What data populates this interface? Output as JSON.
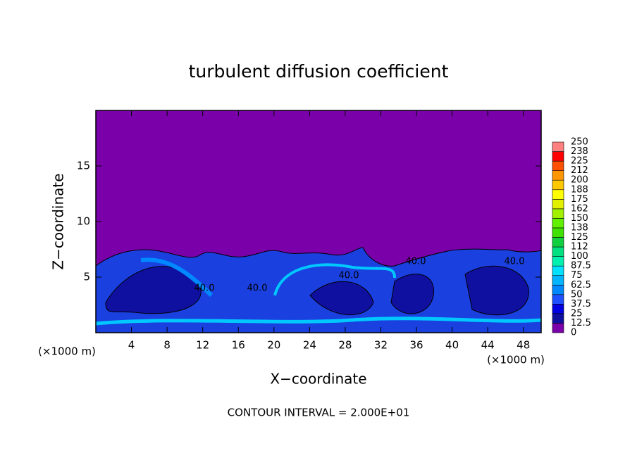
{
  "chart_data": {
    "type": "contour",
    "title": "turbulent diffusion coefficient",
    "x_label": "X−coordinate",
    "y_label": "Z−coordinate",
    "x_unit": "(×1000 m)",
    "footer": "CONTOUR INTERVAL = 2.000E+01",
    "xlim": [
      0,
      50
    ],
    "xticks": [
      4,
      8,
      12,
      16,
      20,
      24,
      28,
      32,
      36,
      40,
      44,
      48
    ],
    "ylim": [
      0,
      20
    ],
    "yticks": [
      5,
      10,
      15
    ],
    "contour_labels": [
      "40.0",
      "40.0",
      "40.0",
      "40.0",
      "40.0"
    ],
    "levels": [
      0,
      12.5,
      25,
      37.5,
      50,
      62.5,
      75,
      87.5,
      100,
      112,
      125,
      138,
      150,
      162,
      175,
      188,
      200,
      212,
      225,
      238,
      250
    ],
    "colors": [
      "#7a00aa",
      "#1010a0",
      "#0000e0",
      "#1e50ff",
      "#0088ff",
      "#00b4ff",
      "#00e0ff",
      "#00f0b0",
      "#00e080",
      "#10d040",
      "#40e000",
      "#60f000",
      "#a0f000",
      "#e0f000",
      "#ffff00",
      "#ffc800",
      "#ff9600",
      "#ff5000",
      "#ff0000",
      "#ff8080"
    ]
  }
}
